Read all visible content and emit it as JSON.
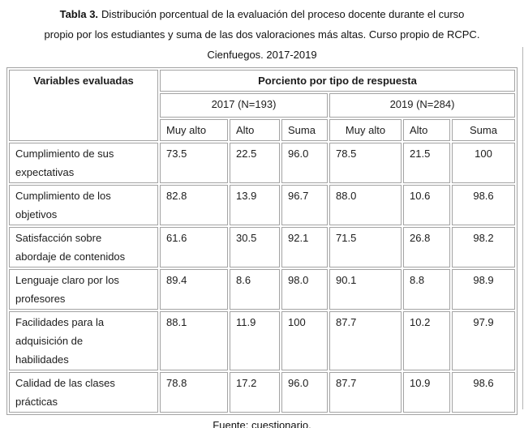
{
  "title": {
    "label": "Tabla 3.",
    "line1_rest": "Distribución porcentual de la evaluación del proceso docente durante el curso",
    "line2": "propio por los estudiantes y suma de las dos valoraciones más altas. Curso propio de RCPC.",
    "line3": "Cienfuegos. 2017-2019"
  },
  "table": {
    "col1_header": "Variables evaluadas",
    "top_header": "Porciento por tipo de respuesta",
    "groups": [
      {
        "label": "2017 (N=193)"
      },
      {
        "label": "2019 (N=284)"
      }
    ],
    "sub_headers": [
      "Muy alto",
      "Alto",
      "Suma",
      "Muy alto",
      "Alto",
      "Suma"
    ],
    "rows": [
      {
        "label": "Cumplimiento de sus expectativas",
        "lines": [
          "Cumplimiento de sus",
          "expectativas"
        ],
        "values": [
          "73.5",
          "22.5",
          "96.0",
          "78.5",
          "21.5",
          "100"
        ]
      },
      {
        "label": "Cumplimiento de los objetivos",
        "lines": [
          "Cumplimiento de los",
          "objetivos"
        ],
        "values": [
          "82.8",
          "13.9",
          "96.7",
          "88.0",
          "10.6",
          "98.6"
        ]
      },
      {
        "label": "Satisfacción sobre abordaje de contenidos",
        "lines": [
          "Satisfacción sobre",
          "abordaje de contenidos"
        ],
        "values": [
          "61.6",
          "30.5",
          "92.1",
          "71.5",
          "26.8",
          "98.2"
        ]
      },
      {
        "label": "Lenguaje claro por los profesores",
        "lines": [
          "Lenguaje claro por los",
          "profesores"
        ],
        "values": [
          "89.4",
          "8.6",
          "98.0",
          "90.1",
          "8.8",
          "98.9"
        ]
      },
      {
        "label": "Facilidades para la adquisición de habilidades",
        "lines": [
          "Facilidades para la",
          "adquisición de",
          "habilidades"
        ],
        "values": [
          "88.1",
          "11.9",
          "100",
          "87.7",
          "10.2",
          "97.9"
        ]
      },
      {
        "label": "Calidad de las clases prácticas",
        "lines": [
          "Calidad de las clases",
          "prácticas"
        ],
        "values": [
          "78.8",
          "17.2",
          "96.0",
          "87.7",
          "10.9",
          "98.6"
        ]
      }
    ]
  },
  "footer": {
    "source": "Fuente: cuestionario."
  },
  "colors": {
    "border": "#a3a3a3",
    "text": "#1c1c1c",
    "background": "#ffffff"
  }
}
